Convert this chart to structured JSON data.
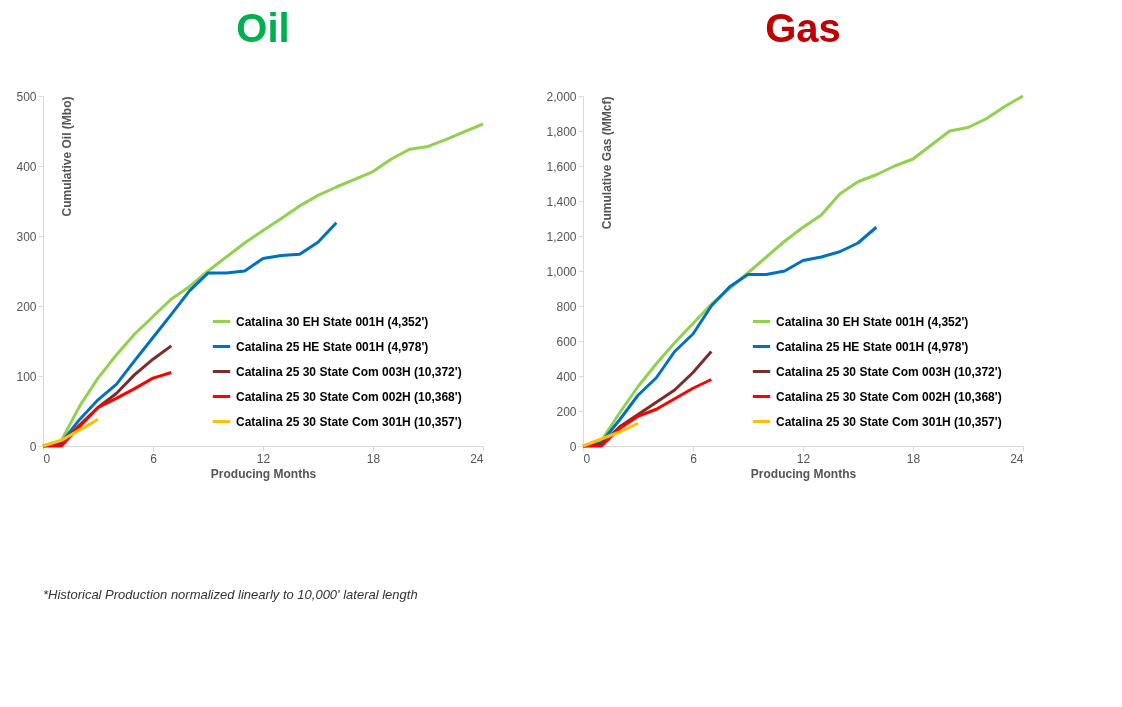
{
  "chart_data": [
    {
      "type": "line",
      "title": "Oil",
      "xlabel": "Producing Months",
      "ylabel": "Cumulative Oil (Mbo)",
      "xlim": [
        0,
        24
      ],
      "xticks": [
        0,
        6,
        12,
        18,
        24
      ],
      "ylim": [
        0,
        500
      ],
      "yticks": [
        0,
        100,
        200,
        300,
        400,
        500
      ],
      "grid": false,
      "legend": "bottom right",
      "line_style": "solid",
      "series": [
        {
          "name": "Catalina 30 EH State 001H (4,352')",
          "color": "#92d050",
          "x": [
            0,
            1,
            2,
            3,
            4,
            5,
            6,
            7,
            8,
            9,
            10,
            11,
            12,
            13,
            14,
            15,
            16,
            17,
            18,
            19,
            20,
            21,
            22,
            23,
            24
          ],
          "values": [
            0,
            8,
            57,
            97,
            130,
            160,
            185,
            210,
            228,
            250,
            270,
            290,
            308,
            325,
            343,
            358,
            370,
            381,
            392,
            410,
            424,
            428,
            438,
            449,
            460
          ]
        },
        {
          "name": "Catalina 25 HE State 001H (4,978')",
          "color": "#0070c0",
          "x": [
            0,
            1,
            2,
            3,
            4,
            5,
            6,
            7,
            8,
            9,
            10,
            11,
            12,
            13,
            14,
            15,
            16
          ],
          "values": [
            0,
            5,
            38,
            66,
            88,
            122,
            155,
            188,
            222,
            247,
            247,
            250,
            268,
            272,
            274,
            291,
            319
          ]
        },
        {
          "name": "Catalina 25 30 State Com 003H (10,372')",
          "color": "#7b2c2c",
          "x": [
            0,
            1,
            2,
            3,
            4,
            5,
            6,
            7
          ],
          "values": [
            0,
            3,
            30,
            55,
            75,
            102,
            124,
            143
          ]
        },
        {
          "name": "Catalina 25 30 State Com 002H  (10,368')",
          "color": "#ff0000",
          "x": [
            0,
            1,
            2,
            3,
            4,
            5,
            6,
            7
          ],
          "values": [
            0,
            0,
            28,
            55,
            68,
            82,
            97,
            105
          ]
        },
        {
          "name": "Catalina 25 30 State Com 301H (10,357')",
          "color": "#ffc000",
          "x": [
            0,
            1,
            2,
            3
          ],
          "values": [
            0,
            8,
            23,
            38
          ]
        }
      ],
      "annotations": [
        "*Historical Production normalized linearly to 10,000' lateral length"
      ]
    },
    {
      "type": "line",
      "title": "Gas",
      "xlabel": "Producing Months",
      "ylabel": "Cumulative Gas (MMcf)",
      "xlim": [
        0,
        24
      ],
      "xticks": [
        0,
        6,
        12,
        18,
        24
      ],
      "ylim": [
        0,
        2000
      ],
      "yticks": [
        0,
        200,
        400,
        600,
        800,
        {
          "value": 1000,
          "label": "1,000"
        },
        {
          "value": 1200,
          "label": "1,200"
        },
        {
          "value": 1400,
          "label": "1,400"
        },
        {
          "value": 1600,
          "label": "1,600"
        },
        {
          "value": 1800,
          "label": "1,800"
        },
        {
          "value": 2000,
          "label": "2,000"
        }
      ],
      "grid": false,
      "legend": "bottom right",
      "line_style": "solid",
      "series": [
        {
          "name": "Catalina 30 EH State 001H (4,352')",
          "color": "#92d050",
          "x": [
            0,
            1,
            2,
            3,
            4,
            5,
            6,
            7,
            8,
            9,
            10,
            11,
            12,
            13,
            14,
            15,
            16,
            17,
            18,
            19,
            20,
            21,
            22,
            23,
            24
          ],
          "values": [
            0,
            30,
            190,
            340,
            470,
            590,
            700,
            810,
            900,
            990,
            1080,
            1170,
            1250,
            1320,
            1440,
            1510,
            1550,
            1600,
            1640,
            1720,
            1800,
            1820,
            1870,
            1940,
            2000
          ]
        },
        {
          "name": "Catalina 25 HE State 001H (4,978')",
          "color": "#0070c0",
          "x": [
            0,
            1,
            2,
            3,
            4,
            5,
            6,
            7,
            8,
            9,
            10,
            11,
            12,
            13,
            14,
            15,
            16
          ],
          "values": [
            0,
            20,
            150,
            290,
            390,
            540,
            640,
            800,
            910,
            980,
            980,
            1000,
            1060,
            1080,
            1110,
            1160,
            1250
          ]
        },
        {
          "name": "Catalina 25 30 State Com 003H (10,372')",
          "color": "#7b2c2c",
          "x": [
            0,
            1,
            2,
            3,
            4,
            5,
            6,
            7
          ],
          "values": [
            0,
            10,
            110,
            180,
            250,
            320,
            420,
            540
          ]
        },
        {
          "name": "Catalina 25 30 State Com 002H  (10,368')",
          "color": "#ff0000",
          "x": [
            0,
            1,
            2,
            3,
            4,
            5,
            6,
            7
          ],
          "values": [
            0,
            0,
            100,
            170,
            210,
            270,
            330,
            380
          ]
        },
        {
          "name": "Catalina 25 30 State Com 301H (10,357')",
          "color": "#ffc000",
          "x": [
            0,
            1,
            2,
            3
          ],
          "values": [
            0,
            40,
            80,
            130
          ]
        }
      ]
    }
  ]
}
